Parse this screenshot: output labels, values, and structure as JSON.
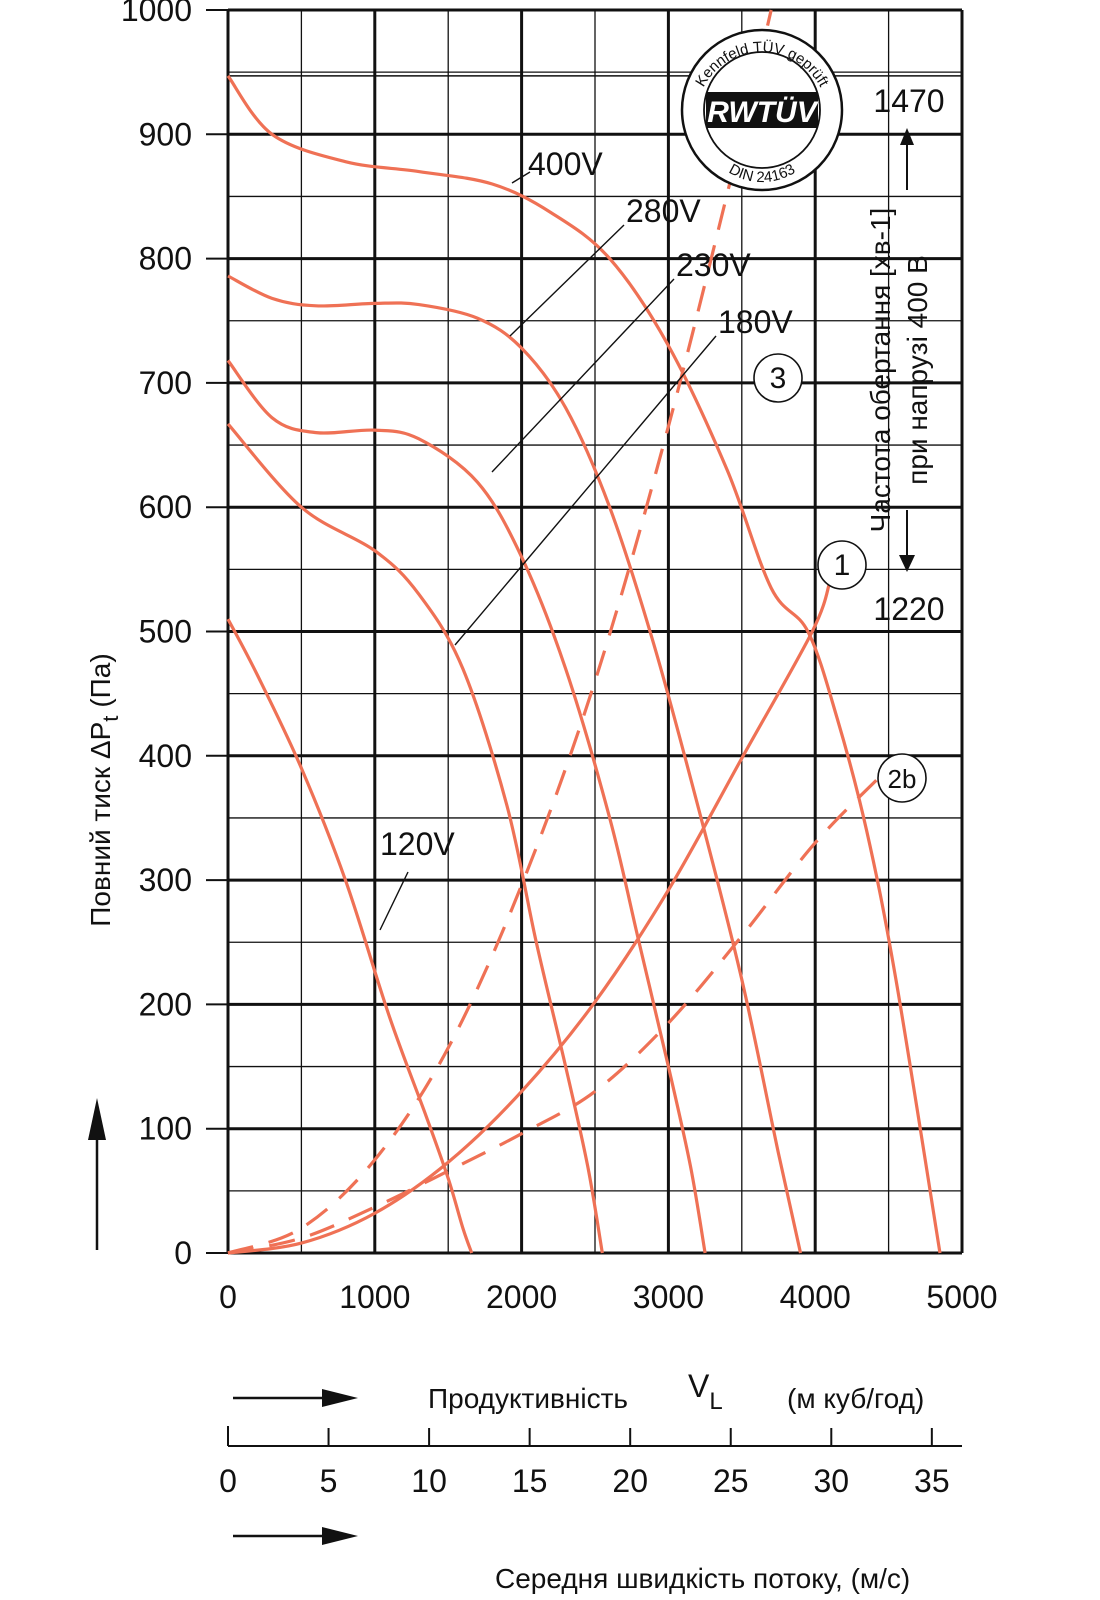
{
  "chart_data": {
    "type": "line",
    "ylabel_main": "Повний тиск  ΔP",
    "ylabel_sub": "t",
    "ylabel_unit": "(Па)",
    "xlabel_main": "Продуктивність",
    "xlabel_symbol": "V",
    "xlabel_symbol_sub": "L",
    "xlabel_unit": "(м куб/год)",
    "xlabel2": "Середня швидкість потоку, (м/с)",
    "xlim": [
      0,
      5000
    ],
    "ylim": [
      0,
      1000
    ],
    "x_ticks": [
      "0",
      "1000",
      "2000",
      "3000",
      "4000",
      "5000"
    ],
    "y_ticks": [
      "0",
      "100",
      "200",
      "300",
      "400",
      "500",
      "600",
      "700",
      "800",
      "900",
      "1000"
    ],
    "x2_ticks": [
      "0",
      "5",
      "10",
      "15",
      "20",
      "25",
      "30",
      "35"
    ],
    "x2_values": [
      0,
      5,
      10,
      15,
      20,
      25,
      30,
      35
    ],
    "rpm_label_line1": "Частота  обертання [хв-1]",
    "rpm_label_line2": "при напрузі 400 В",
    "rpm_top": "1470",
    "rpm_bottom": "1220",
    "stamp": {
      "top": "Kennfeld TÜV geprüft",
      "logo": "RWTÜV",
      "bottom": "DIN 24163"
    },
    "series": [
      {
        "name": "400V",
        "x": [
          0,
          300,
          800,
          1300,
          1800,
          2200,
          2600,
          3000,
          3400,
          3700,
          3950,
          4150,
          4350,
          4550,
          4850
        ],
        "y": [
          947,
          900,
          878,
          870,
          860,
          837,
          800,
          730,
          630,
          535,
          500,
          430,
          340,
          220,
          0
        ]
      },
      {
        "name": "280V",
        "x": [
          0,
          300,
          600,
          1000,
          1300,
          1700,
          2000,
          2300,
          2600,
          2900,
          3200,
          3500,
          3750,
          3900
        ],
        "y": [
          786,
          768,
          762,
          764,
          763,
          752,
          728,
          680,
          600,
          490,
          360,
          220,
          80,
          0
        ]
      },
      {
        "name": "230V",
        "x": [
          0,
          300,
          600,
          1000,
          1300,
          1700,
          2000,
          2300,
          2600,
          2800,
          3000,
          3150,
          3250
        ],
        "y": [
          718,
          672,
          660,
          662,
          655,
          620,
          560,
          470,
          350,
          250,
          150,
          70,
          0
        ]
      },
      {
        "name": "180V",
        "x": [
          0,
          500,
          1000,
          1300,
          1600,
          1900,
          2100,
          2300,
          2450,
          2550
        ],
        "y": [
          667,
          600,
          565,
          530,
          470,
          360,
          250,
          150,
          70,
          0
        ]
      },
      {
        "name": "120V",
        "x": [
          0,
          200,
          500,
          800,
          1100,
          1350,
          1500,
          1600,
          1660
        ],
        "y": [
          510,
          465,
          390,
          300,
          190,
          110,
          60,
          20,
          0
        ]
      }
    ],
    "system_curves": [
      {
        "name": "1",
        "style": "solid",
        "x": [
          0,
          500,
          1000,
          1500,
          2000,
          2500,
          3000,
          3500,
          3980,
          4100
        ],
        "y": [
          0,
          8,
          32,
          73,
          130,
          202,
          292,
          398,
          500,
          540
        ]
      },
      {
        "name": "3",
        "style": "dashed",
        "x": [
          0,
          500,
          1000,
          1500,
          2000,
          2500,
          3000,
          3500,
          3700
        ],
        "y": [
          0,
          20,
          75,
          165,
          296,
          460,
          665,
          900,
          1000
        ]
      },
      {
        "name": "2b",
        "style": "dashed",
        "x": [
          0,
          500,
          1000,
          1500,
          2000,
          2500,
          3000,
          3500,
          4000,
          4500
        ],
        "y": [
          0,
          12,
          37,
          66,
          96,
          130,
          185,
          255,
          330,
          390
        ]
      }
    ]
  }
}
